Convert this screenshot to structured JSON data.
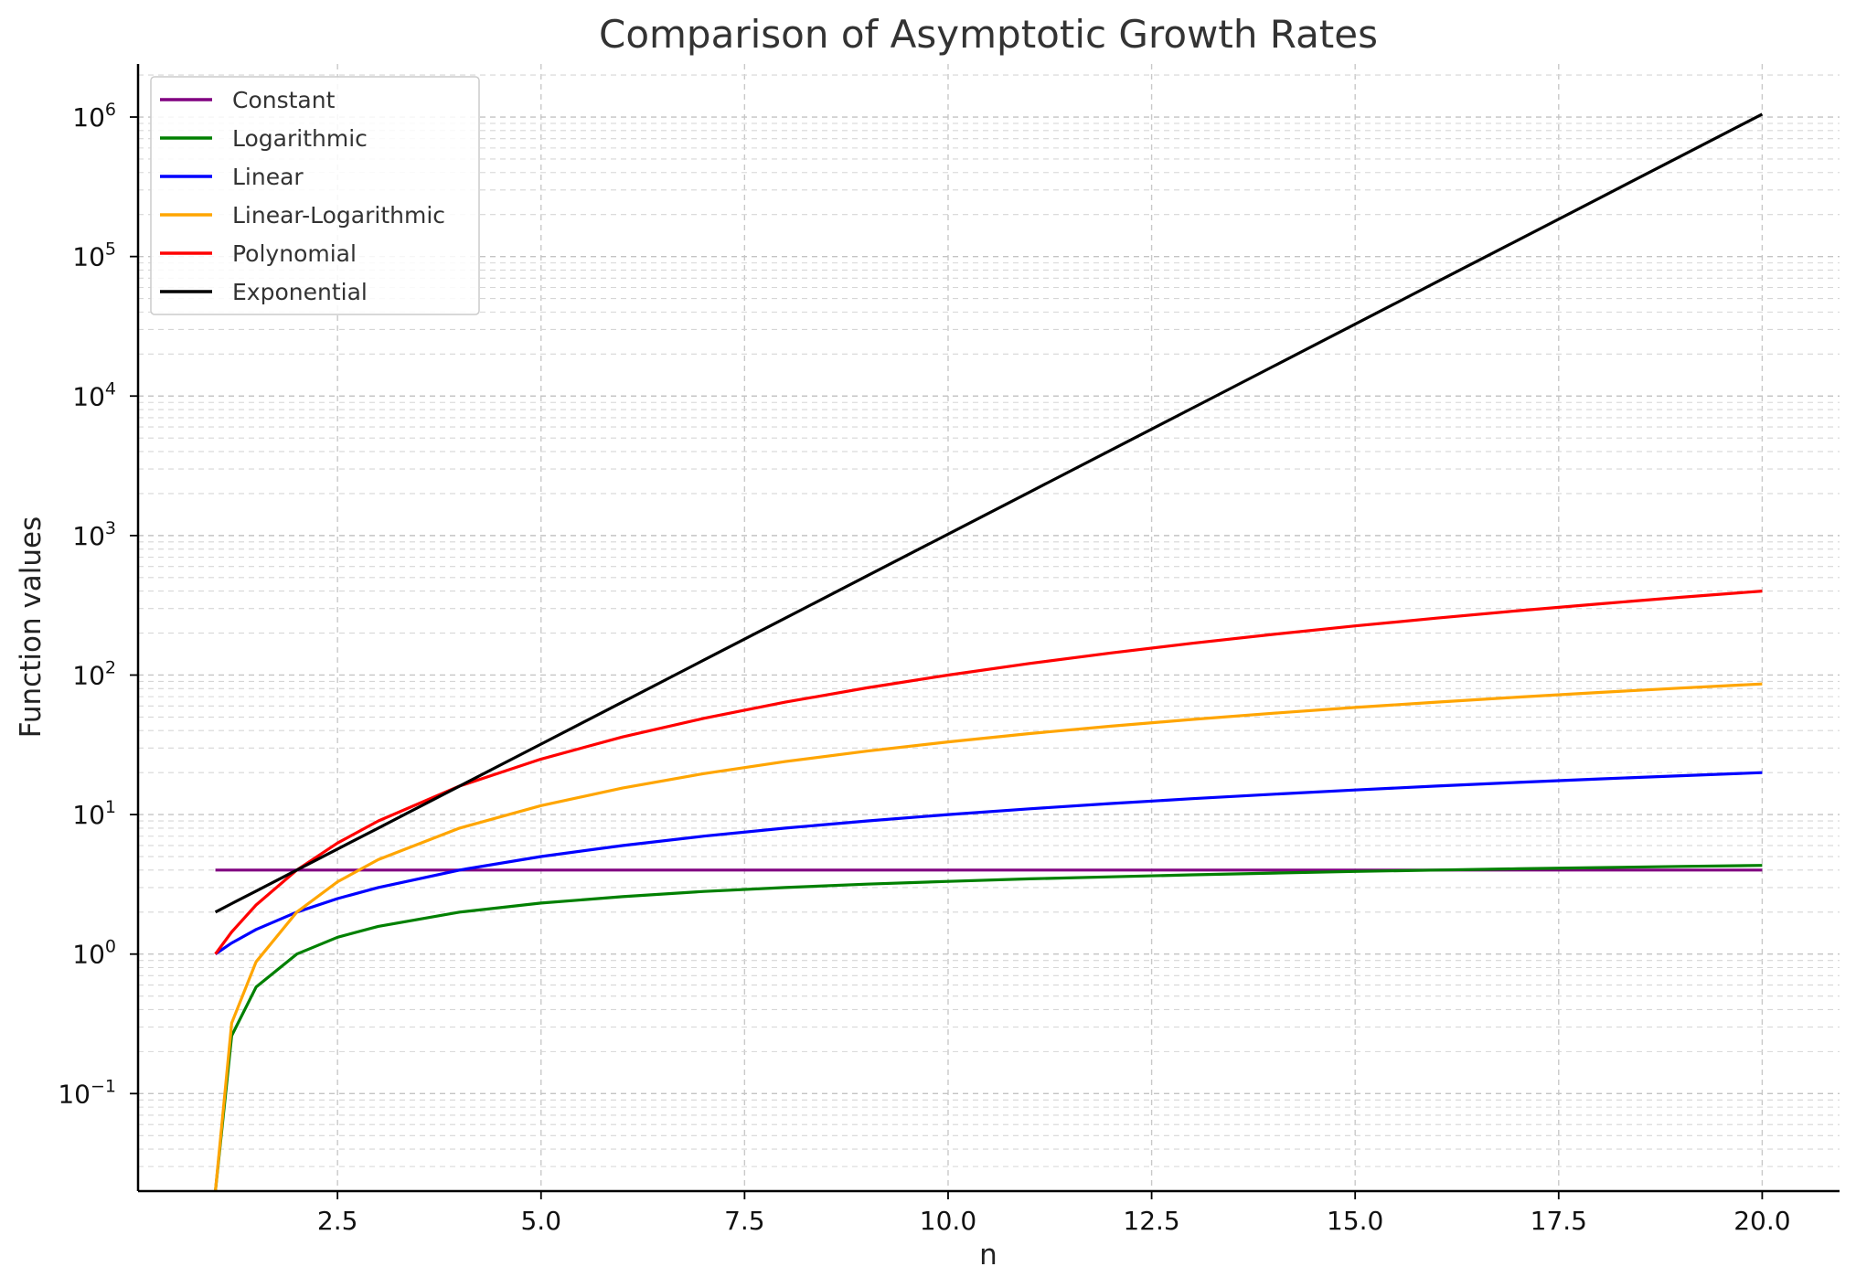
{
  "chart_data": {
    "type": "line",
    "title": "Comparison of Asymptotic Growth Rates",
    "xlabel": "n",
    "ylabel": "Function values",
    "yscale": "log",
    "xlim": [
      0.05,
      20.95
    ],
    "ylim": [
      0.02,
      2400000
    ],
    "x_ticks": [
      2.5,
      5.0,
      7.5,
      10.0,
      12.5,
      15.0,
      17.5,
      20.0
    ],
    "x_tick_labels": [
      "2.5",
      "5.0",
      "7.5",
      "10.0",
      "12.5",
      "15.0",
      "17.5",
      "20.0"
    ],
    "y_ticks": [
      {
        "value": 0.1,
        "base": "10",
        "exp": "−1"
      },
      {
        "value": 1,
        "base": "10",
        "exp": "0"
      },
      {
        "value": 10,
        "base": "10",
        "exp": "1"
      },
      {
        "value": 100,
        "base": "10",
        "exp": "2"
      },
      {
        "value": 1000,
        "base": "10",
        "exp": "3"
      },
      {
        "value": 10000,
        "base": "10",
        "exp": "4"
      },
      {
        "value": 100000,
        "base": "10",
        "exp": "5"
      },
      {
        "value": 1000000,
        "base": "10",
        "exp": "6"
      }
    ],
    "grid": true,
    "legend_position": "top-left",
    "x": [
      1,
      1.2,
      1.5,
      2,
      2.5,
      3,
      4,
      5,
      6,
      7,
      8,
      9,
      10,
      11,
      12,
      13,
      14,
      15,
      16,
      17,
      18,
      19,
      20
    ],
    "series": [
      {
        "name": "Constant",
        "color": "#800080",
        "values": [
          4,
          4,
          4,
          4,
          4,
          4,
          4,
          4,
          4,
          4,
          4,
          4,
          4,
          4,
          4,
          4,
          4,
          4,
          4,
          4,
          4,
          4,
          4
        ]
      },
      {
        "name": "Logarithmic",
        "color": "#008000",
        "values": [
          0.02,
          0.26,
          0.58,
          1.0,
          1.32,
          1.58,
          2.0,
          2.32,
          2.58,
          2.81,
          3.0,
          3.17,
          3.32,
          3.46,
          3.58,
          3.7,
          3.81,
          3.91,
          4.0,
          4.09,
          4.17,
          4.25,
          4.32
        ]
      },
      {
        "name": "Linear",
        "color": "#0000ff",
        "values": [
          1,
          1.2,
          1.5,
          2,
          2.5,
          3,
          4,
          5,
          6,
          7,
          8,
          9,
          10,
          11,
          12,
          13,
          14,
          15,
          16,
          17,
          18,
          19,
          20
        ]
      },
      {
        "name": "Linear-Logarithmic",
        "color": "#ffa500",
        "values": [
          0.02,
          0.32,
          0.88,
          2.0,
          3.3,
          4.75,
          8.0,
          11.6,
          15.5,
          19.65,
          24.0,
          28.5,
          33.2,
          38.05,
          43.0,
          48.1,
          53.3,
          58.6,
          64.0,
          69.5,
          75.1,
          80.7,
          86.4
        ]
      },
      {
        "name": "Polynomial",
        "color": "#ff0000",
        "values": [
          1,
          1.44,
          2.25,
          4,
          6.25,
          9,
          16,
          25,
          36,
          49,
          64,
          81,
          100,
          121,
          144,
          169,
          196,
          225,
          256,
          289,
          324,
          361,
          400
        ]
      },
      {
        "name": "Exponential",
        "color": "#000000",
        "values": [
          2,
          2.3,
          2.83,
          4,
          5.66,
          8,
          16,
          32,
          64,
          128,
          256,
          512,
          1024,
          2048,
          4096,
          8192,
          16384,
          32768,
          65536,
          131072,
          262144,
          524288,
          1048576
        ]
      }
    ]
  }
}
